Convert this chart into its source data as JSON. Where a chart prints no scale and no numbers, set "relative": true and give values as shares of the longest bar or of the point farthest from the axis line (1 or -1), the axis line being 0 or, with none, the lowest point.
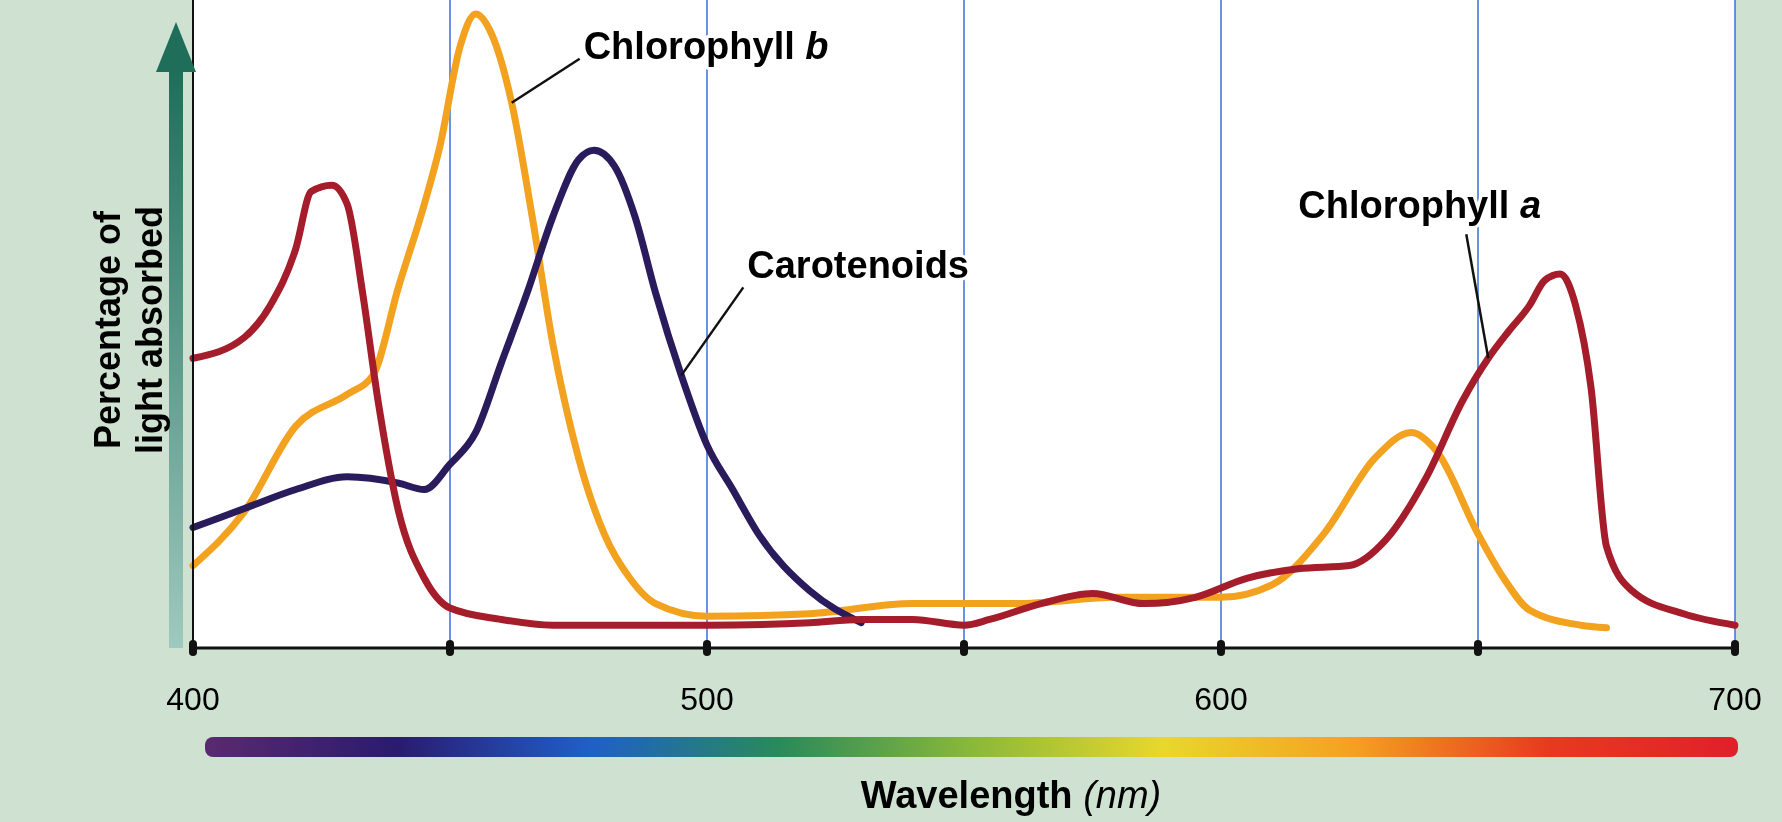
{
  "chart_data": {
    "type": "line",
    "relative": true,
    "xlabel": "Wavelength (nm)",
    "ylabel": "Percentage of light absorbed",
    "xlim": [
      400,
      700
    ],
    "xticks": [
      400,
      {
        "value": 450,
        "label": null
      },
      500,
      {
        "value": 550,
        "label": null
      },
      600,
      {
        "value": 650,
        "label": null
      },
      700
    ],
    "grid": "x",
    "tick_labels": "x",
    "series": [
      {
        "name": "Chlorophyll b",
        "color": "#f2a21e",
        "x": [
          400,
          410,
          420,
          430,
          435,
          440,
          445,
          448,
          452,
          455,
          458,
          462,
          466,
          470,
          475,
          480,
          485,
          490,
          500,
          520,
          540,
          560,
          580,
          600,
          610,
          620,
          630,
          637,
          642,
          650,
          655,
          660,
          670,
          675
        ],
        "values": [
          0.13,
          0.215,
          0.35,
          0.4,
          0.43,
          0.57,
          0.7,
          0.79,
          0.95,
          1.0,
          0.97,
          0.86,
          0.68,
          0.48,
          0.3,
          0.18,
          0.11,
          0.07,
          0.05,
          0.054,
          0.07,
          0.07,
          0.08,
          0.08,
          0.1,
          0.18,
          0.3,
          0.34,
          0.31,
          0.18,
          0.11,
          0.06,
          0.036,
          0.032
        ]
      },
      {
        "name": "Carotenoids",
        "color": "#2a1b5c",
        "x": [
          400,
          410,
          420,
          430,
          440,
          445,
          450,
          455,
          460,
          465,
          470,
          475,
          478,
          482,
          486,
          490,
          495,
          500,
          505,
          510,
          520,
          530
        ],
        "values": [
          0.19,
          0.22,
          0.25,
          0.27,
          0.26,
          0.25,
          0.29,
          0.34,
          0.45,
          0.56,
          0.68,
          0.77,
          0.785,
          0.76,
          0.68,
          0.56,
          0.43,
          0.32,
          0.25,
          0.18,
          0.09,
          0.04
        ]
      },
      {
        "name": "Chlorophyll a",
        "color": "#a51c2a",
        "x": [
          400,
          410,
          415,
          420,
          423,
          427,
          430,
          433,
          436,
          440,
          445,
          450,
          460,
          470,
          500,
          520,
          530,
          540,
          550,
          555,
          565,
          575,
          585,
          595,
          605,
          615,
          625,
          632,
          640,
          647,
          652,
          656,
          660,
          663,
          666,
          669,
          672,
          675,
          680,
          690,
          700
        ],
        "values": [
          0.457,
          0.49,
          0.54,
          0.63,
          0.72,
          0.73,
          0.7,
          0.56,
          0.39,
          0.215,
          0.11,
          0.063,
          0.045,
          0.036,
          0.036,
          0.04,
          0.045,
          0.045,
          0.036,
          0.045,
          0.07,
          0.086,
          0.07,
          0.08,
          0.11,
          0.125,
          0.13,
          0.17,
          0.27,
          0.39,
          0.457,
          0.5,
          0.54,
          0.58,
          0.59,
          0.54,
          0.41,
          0.16,
          0.09,
          0.054,
          0.036
        ]
      }
    ]
  }
}
